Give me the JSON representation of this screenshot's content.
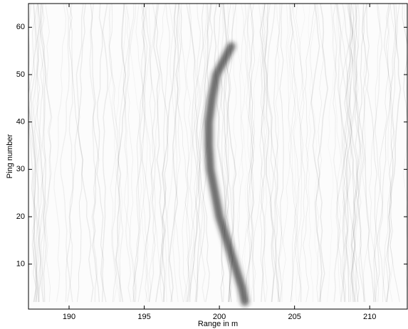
{
  "chart_data": {
    "type": "echogram",
    "xlabel": "Range in m",
    "ylabel": "Ping number",
    "xlim": [
      187.3,
      212.5
    ],
    "xticks": [
      190,
      195,
      200,
      205,
      210
    ],
    "ylim": [
      0.5,
      65
    ],
    "yticks": [
      10,
      20,
      30,
      40,
      50,
      60
    ],
    "color": "#202020",
    "x": [
      201.7,
      201.5,
      201.0,
      200.5,
      200.0,
      199.7,
      199.4,
      199.3,
      199.3,
      199.5,
      199.8,
      200.3,
      200.8
    ],
    "values": [
      2,
      5,
      10,
      15,
      20,
      25,
      30,
      35,
      40,
      45,
      50,
      53,
      56
    ]
  }
}
